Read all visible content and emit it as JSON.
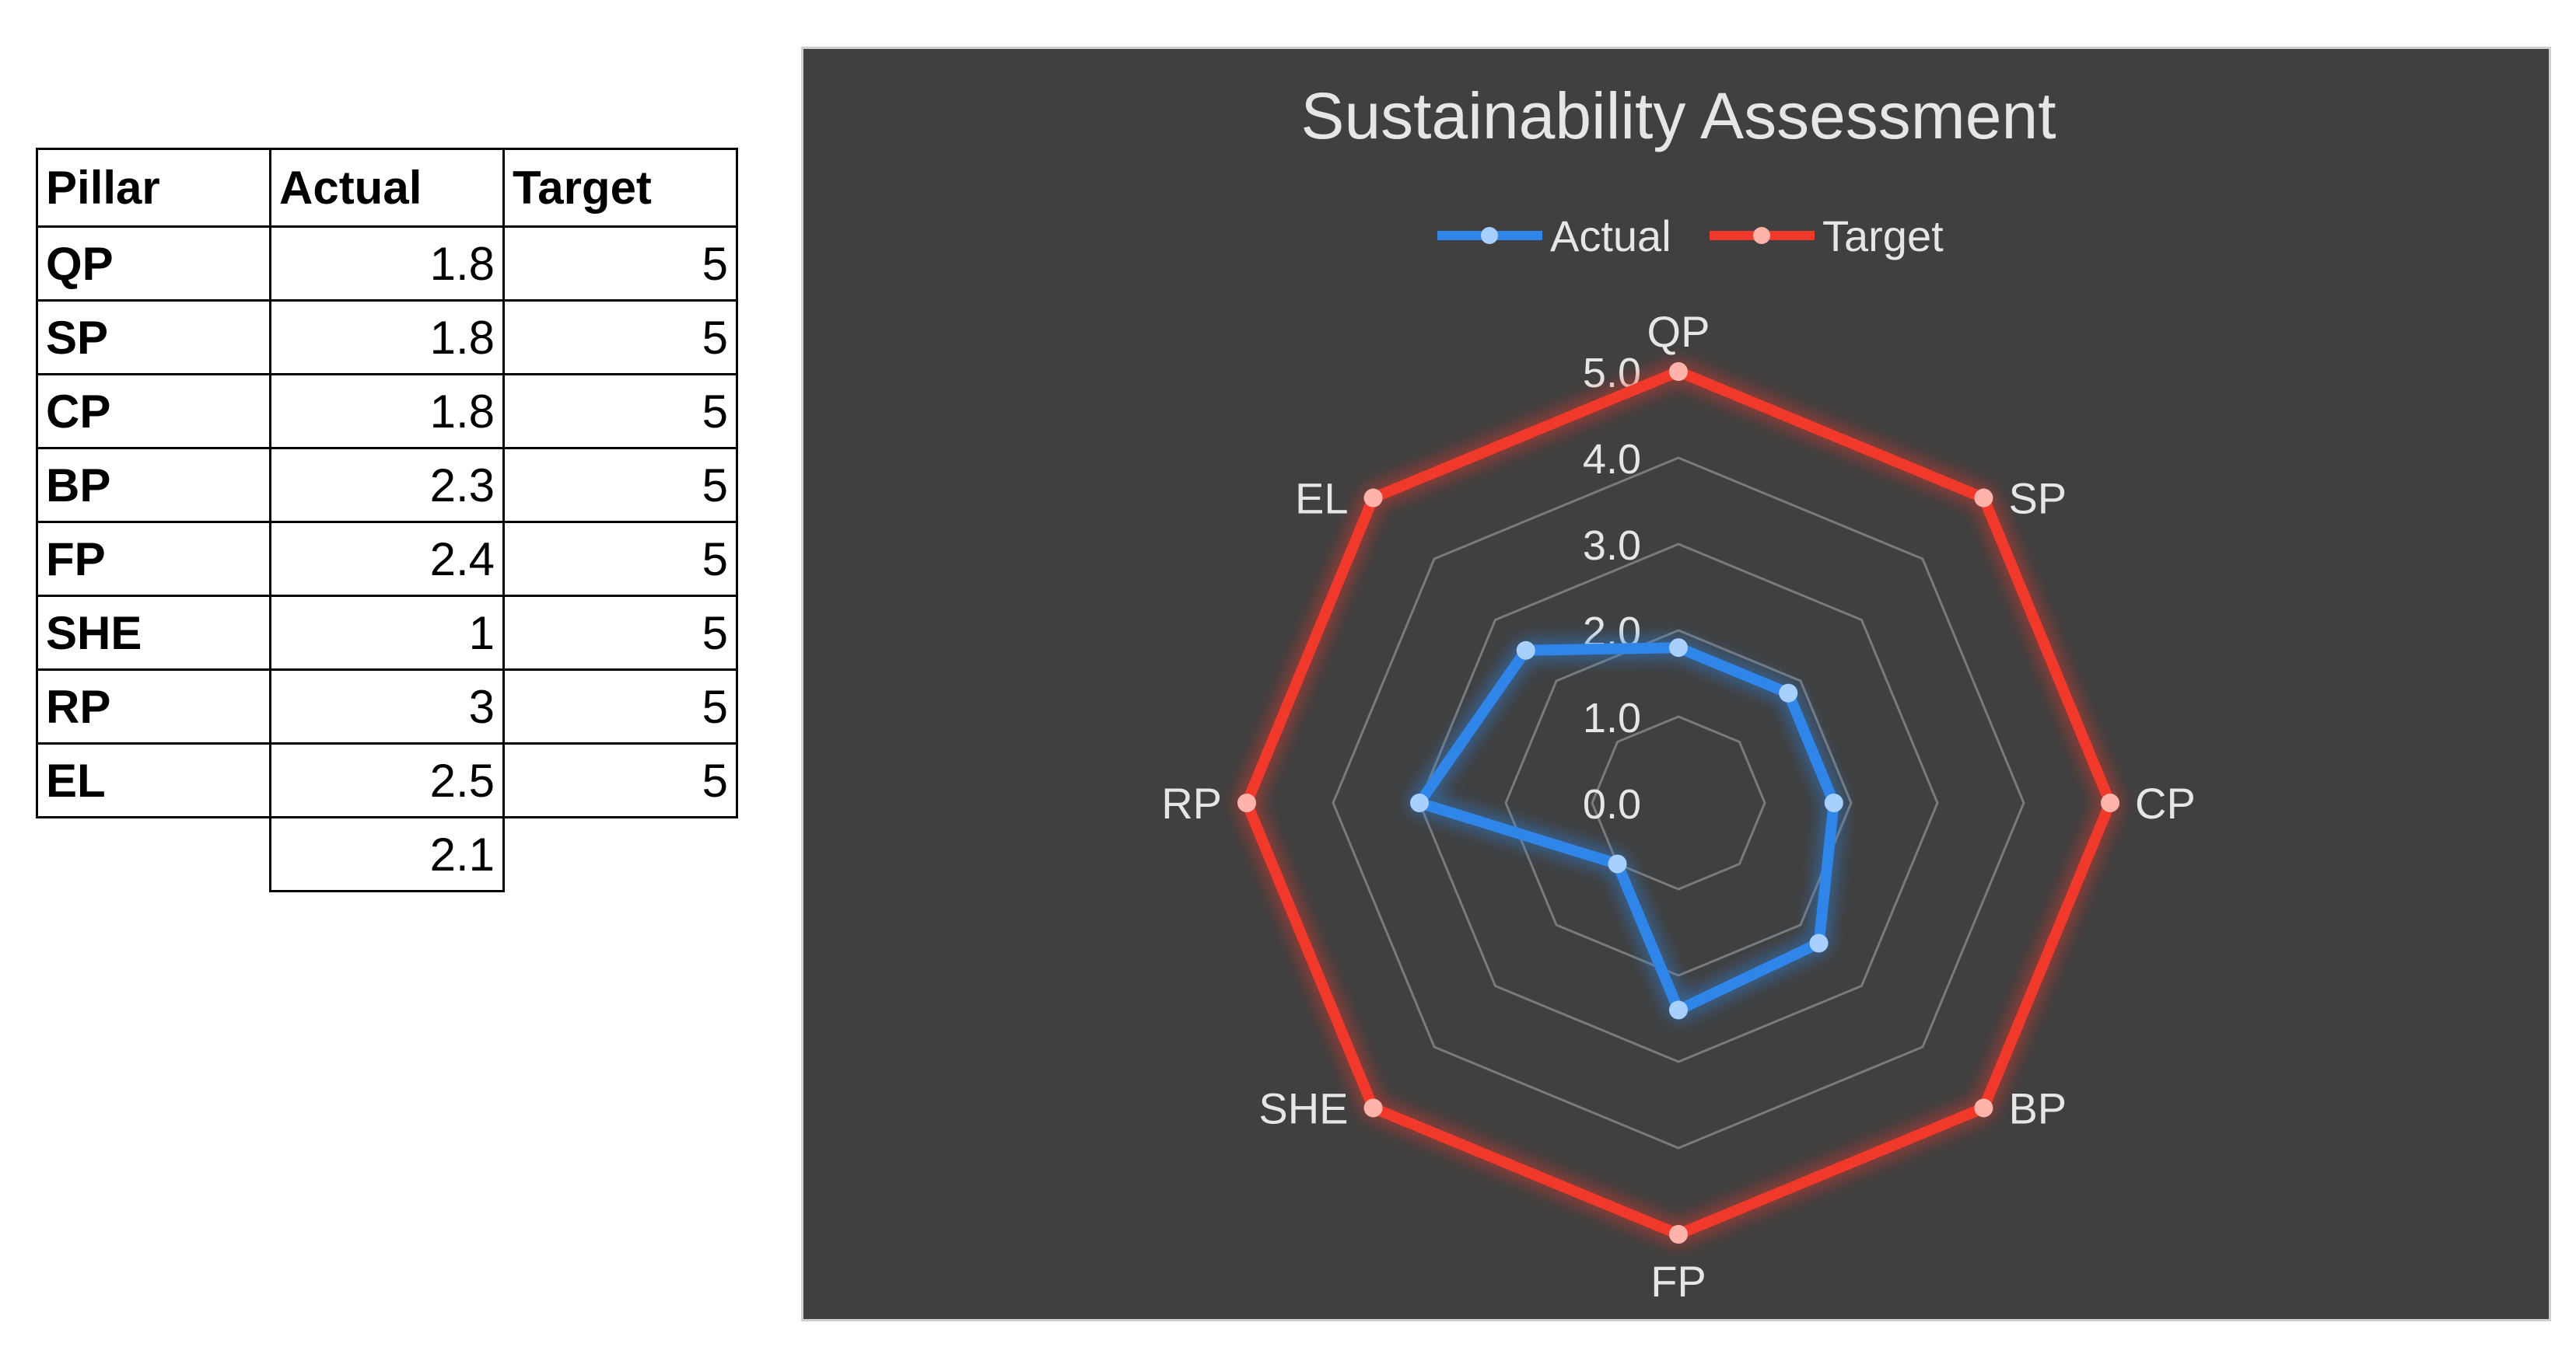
{
  "table": {
    "headers": [
      "Pillar",
      "Actual",
      "Target"
    ],
    "rows": [
      {
        "pillar": "QP",
        "actual": "1.8",
        "target": "5"
      },
      {
        "pillar": "SP",
        "actual": "1.8",
        "target": "5"
      },
      {
        "pillar": "CP",
        "actual": "1.8",
        "target": "5"
      },
      {
        "pillar": "BP",
        "actual": "2.3",
        "target": "5"
      },
      {
        "pillar": "FP",
        "actual": "2.4",
        "target": "5"
      },
      {
        "pillar": "SHE",
        "actual": "1",
        "target": "5"
      },
      {
        "pillar": "RP",
        "actual": "3",
        "target": "5"
      },
      {
        "pillar": "EL",
        "actual": "2.5",
        "target": "5"
      }
    ],
    "average": "2.1"
  },
  "chart_data": {
    "type": "radar",
    "title": "Sustainability Assessment",
    "categories": [
      "QP",
      "SP",
      "CP",
      "BP",
      "FP",
      "SHE",
      "RP",
      "EL"
    ],
    "series": [
      {
        "name": "Actual",
        "values": [
          1.8,
          1.8,
          1.8,
          2.3,
          2.4,
          1,
          3,
          2.5
        ],
        "color": "#2f86e8"
      },
      {
        "name": "Target",
        "values": [
          5,
          5,
          5,
          5,
          5,
          5,
          5,
          5
        ],
        "color": "#f0392b"
      }
    ],
    "rlim": [
      0,
      5
    ],
    "tick_labels": [
      "0.0",
      "1.0",
      "2.0",
      "3.0",
      "4.0",
      "5.0"
    ],
    "legend_position": "top",
    "background": "#404040",
    "grid_color": "#7a7a7a",
    "text_color": "#e6e6e6"
  }
}
